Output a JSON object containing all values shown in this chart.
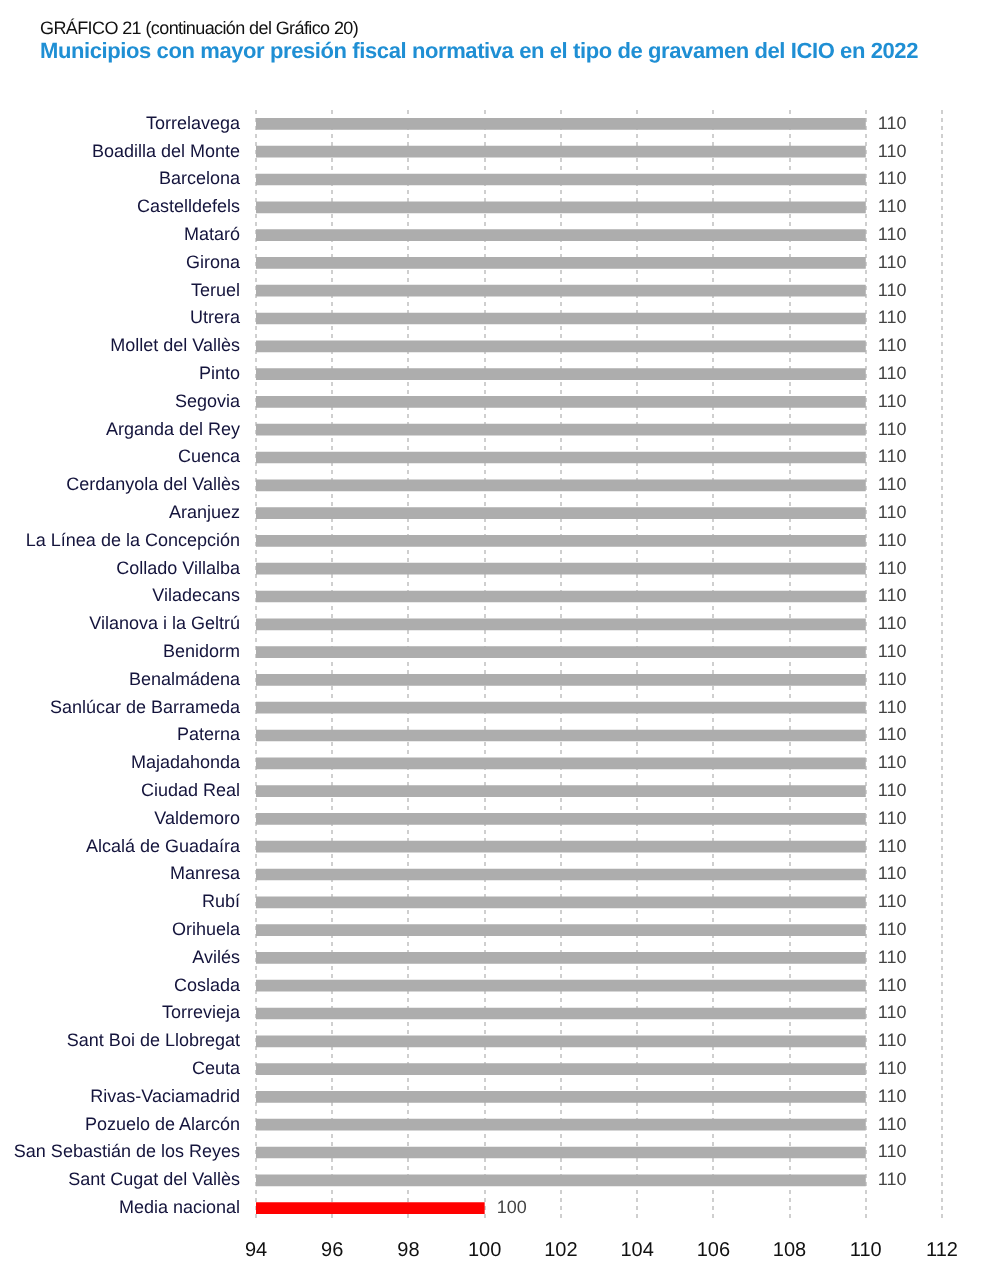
{
  "chart_data": {
    "type": "bar",
    "orientation": "horizontal",
    "title": "Municipios con mayor presión fiscal normativa en el tipo de gravamen del ICIO en 2022",
    "subtitle": "GRÁFICO 21 (continuación del Gráfico 20)",
    "categories": [
      "Torrelavega",
      "Boadilla del Monte",
      "Barcelona",
      "Castelldefels",
      "Mataró",
      "Girona",
      "Teruel",
      "Utrera",
      "Mollet del Vallès",
      "Pinto",
      "Segovia",
      "Arganda del Rey",
      "Cuenca",
      "Cerdanyola del Vallès",
      "Aranjuez",
      "La Línea de la Concepción",
      "Collado Villalba",
      "Viladecans",
      "Vilanova i la Geltrú",
      "Benidorm",
      "Benalmádena",
      "Sanlúcar de Barrameda",
      "Paterna",
      "Majadahonda",
      "Ciudad Real",
      "Valdemoro",
      "Alcalá de Guadaíra",
      "Manresa",
      "Rubí",
      "Orihuela",
      "Avilés",
      "Coslada",
      "Torrevieja",
      "Sant Boi de Llobregat",
      "Ceuta",
      "Rivas-Vaciamadrid",
      "Pozuelo de Alarcón",
      "San Sebastián de los Reyes",
      "Sant Cugat del Vallès",
      "Media nacional"
    ],
    "values": [
      110,
      110,
      110,
      110,
      110,
      110,
      110,
      110,
      110,
      110,
      110,
      110,
      110,
      110,
      110,
      110,
      110,
      110,
      110,
      110,
      110,
      110,
      110,
      110,
      110,
      110,
      110,
      110,
      110,
      110,
      110,
      110,
      110,
      110,
      110,
      110,
      110,
      110,
      110,
      100
    ],
    "colors": [
      "#adadad",
      "#adadad",
      "#adadad",
      "#adadad",
      "#adadad",
      "#adadad",
      "#adadad",
      "#adadad",
      "#adadad",
      "#adadad",
      "#adadad",
      "#adadad",
      "#adadad",
      "#adadad",
      "#adadad",
      "#adadad",
      "#adadad",
      "#adadad",
      "#adadad",
      "#adadad",
      "#adadad",
      "#adadad",
      "#adadad",
      "#adadad",
      "#adadad",
      "#adadad",
      "#adadad",
      "#adadad",
      "#adadad",
      "#adadad",
      "#adadad",
      "#adadad",
      "#adadad",
      "#adadad",
      "#adadad",
      "#adadad",
      "#adadad",
      "#adadad",
      "#adadad",
      "#ff0000"
    ],
    "xlim": [
      94,
      112
    ],
    "xticks": [
      94,
      96,
      98,
      100,
      102,
      104,
      106,
      108,
      110,
      112
    ],
    "grid": "x",
    "data_labels": true
  }
}
